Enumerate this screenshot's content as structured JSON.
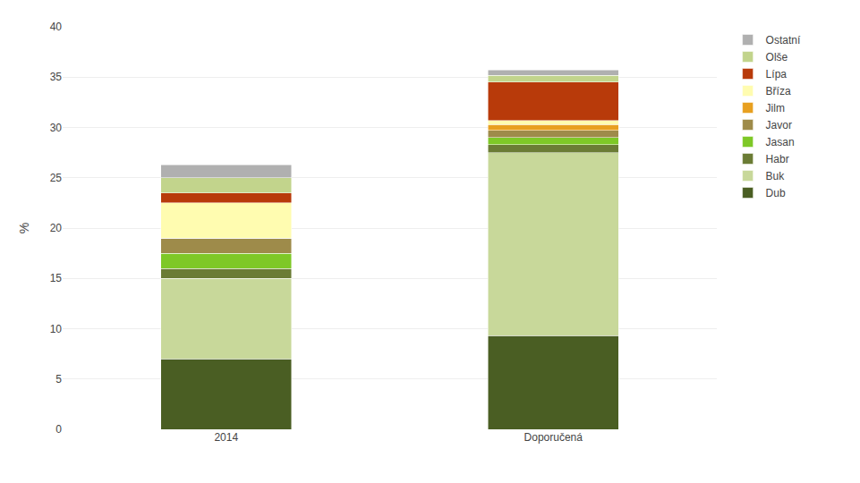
{
  "chart_data": {
    "type": "bar",
    "stacked": true,
    "categories": [
      "2014",
      "Doporučená"
    ],
    "series": [
      {
        "name": "Dub",
        "color": "#4a5e23",
        "values": [
          7.0,
          9.3
        ]
      },
      {
        "name": "Buk",
        "color": "#c8d89a",
        "values": [
          8.0,
          18.2
        ]
      },
      {
        "name": "Habr",
        "color": "#6b7c35",
        "values": [
          1.0,
          0.8
        ]
      },
      {
        "name": "Jasan",
        "color": "#7ec827",
        "values": [
          1.5,
          0.7
        ]
      },
      {
        "name": "Javor",
        "color": "#9e8b4a",
        "values": [
          1.5,
          0.7
        ]
      },
      {
        "name": "Jilm",
        "color": "#e8a020",
        "values": [
          0.0,
          0.6
        ]
      },
      {
        "name": "Bříza",
        "color": "#fffcb0",
        "values": [
          3.5,
          0.4
        ]
      },
      {
        "name": "Lípa",
        "color": "#b83a0a",
        "values": [
          1.0,
          3.8
        ]
      },
      {
        "name": "Olše",
        "color": "#c2d48c",
        "values": [
          1.5,
          0.7
        ]
      },
      {
        "name": "Ostatní",
        "color": "#b0b0b0",
        "values": [
          1.3,
          0.5
        ]
      }
    ],
    "ylabel": "%",
    "ylim": [
      0,
      40
    ],
    "yticks": [
      0,
      5,
      10,
      15,
      20,
      25,
      30,
      35,
      40
    ],
    "grid": true,
    "legend": "right"
  }
}
